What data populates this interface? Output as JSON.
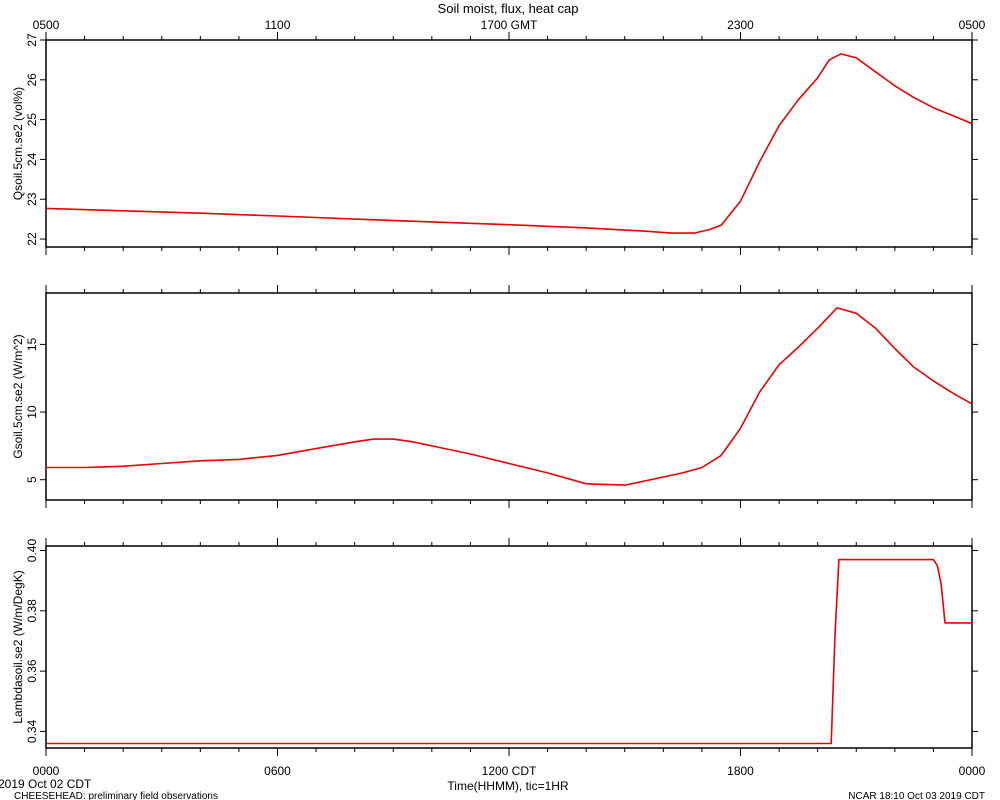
{
  "chart_data": {
    "type": "line",
    "title": "Soil moist, flux, heat cap",
    "series_color": "#ee0000",
    "top_axis": {
      "tick_labels": [
        "0500",
        "1100",
        "1700 GMT",
        "2300",
        "0500"
      ]
    },
    "bottom_axis": {
      "tick_labels": [
        "0000",
        "0600",
        "1200 CDT",
        "1800",
        "0000"
      ],
      "label": "Time(HHMM), tic=1HR",
      "xlim_hours": [
        0,
        24
      ],
      "major_tick_every_hours": 6,
      "minor_tick_every_hours": 1
    },
    "footer": {
      "start_date": "2019 Oct 02 CDT",
      "project": "CHEESEHEAD: preliminary field observations",
      "producer": "NCAR 18:10 Oct 03 2019 CDT"
    },
    "panels": [
      {
        "ylabel": "Qsoil.5cm.se2 (vol%)",
        "ylim": [
          21.8,
          27
        ],
        "yticks": [
          22,
          23,
          24,
          25,
          26,
          27
        ],
        "ytick_labels": [
          "22",
          "23",
          "24",
          "25",
          "26",
          "27"
        ],
        "x": [
          0,
          2,
          4,
          6,
          8,
          10,
          12,
          14,
          15.5,
          16.2,
          16.8,
          17.2,
          17.5,
          18,
          18.5,
          19,
          19.5,
          20,
          20.3,
          20.6,
          21,
          21.5,
          22,
          22.5,
          23,
          23.5,
          24
        ],
        "y": [
          22.77,
          22.71,
          22.65,
          22.58,
          22.5,
          22.43,
          22.36,
          22.28,
          22.2,
          22.15,
          22.15,
          22.24,
          22.35,
          22.95,
          23.95,
          24.85,
          25.5,
          26.05,
          26.5,
          26.65,
          26.55,
          26.2,
          25.85,
          25.55,
          25.3,
          25.1,
          24.9
        ]
      },
      {
        "ylabel": "Gsoil.5cm.se2 (W/m^2)",
        "ylim": [
          3.5,
          18.8
        ],
        "yticks": [
          5,
          10,
          15
        ],
        "ytick_labels": [
          "5",
          "10",
          "15"
        ],
        "x": [
          0,
          1,
          1.5,
          2,
          3,
          4,
          5,
          6,
          7,
          8,
          8.5,
          9,
          9.5,
          10,
          11,
          12,
          13,
          14,
          15,
          15.5,
          16,
          16.5,
          17,
          17.5,
          18,
          18.5,
          19,
          19.5,
          20,
          20.5,
          21,
          21.5,
          22,
          22.5,
          23,
          23.5,
          24
        ],
        "y": [
          5.9,
          5.9,
          5.95,
          6.0,
          6.2,
          6.4,
          6.5,
          6.8,
          7.3,
          7.8,
          8.0,
          8.0,
          7.8,
          7.5,
          6.9,
          6.2,
          5.5,
          4.7,
          4.6,
          4.9,
          5.2,
          5.5,
          5.9,
          6.8,
          8.8,
          11.5,
          13.5,
          14.8,
          16.2,
          17.7,
          17.3,
          16.2,
          14.7,
          13.3,
          12.3,
          11.4,
          10.6
        ]
      },
      {
        "ylabel": "Lambdasoil.se2 (W/m/DegK)",
        "ylim": [
          0.3345,
          0.4015
        ],
        "yticks": [
          0.34,
          0.36,
          0.38,
          0.4
        ],
        "ytick_labels": [
          "0.34",
          "0.36",
          "0.38",
          "0.40"
        ],
        "x": [
          0,
          20.35,
          20.45,
          20.55,
          23.0,
          23.1,
          23.2,
          23.3,
          24
        ],
        "y": [
          0.336,
          0.336,
          0.372,
          0.397,
          0.397,
          0.395,
          0.389,
          0.376,
          0.376
        ]
      }
    ]
  }
}
